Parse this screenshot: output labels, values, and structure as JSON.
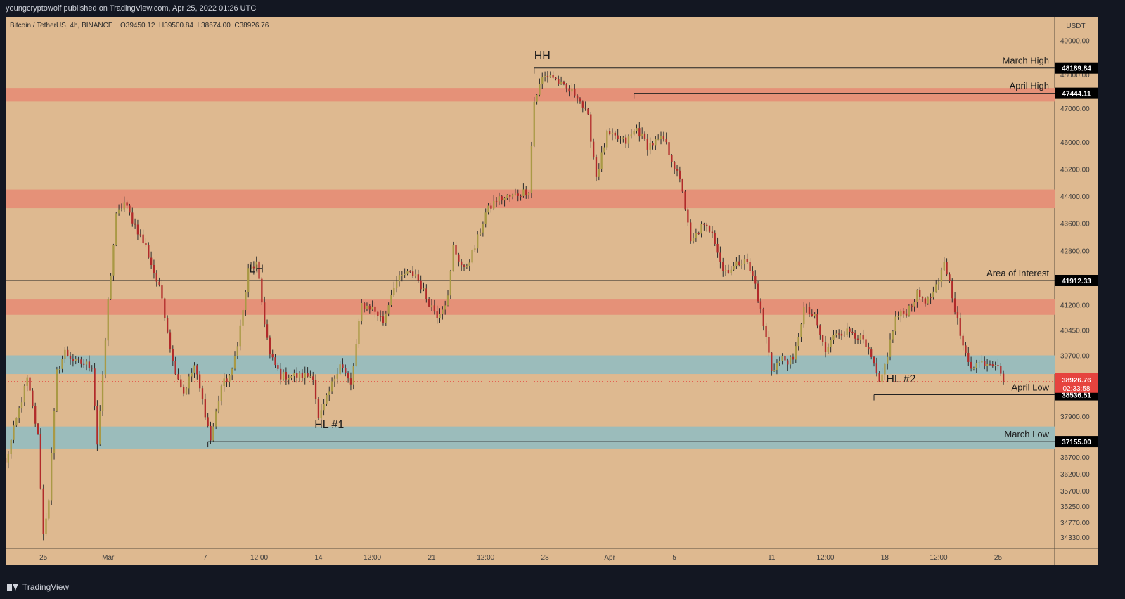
{
  "publisher_line": "youngcryptowolf published on TradingView.com, Apr 25, 2022 01:26 UTC",
  "footer": {
    "logo_text": "TradingView"
  },
  "legend": {
    "symbol": "Bitcoin / TetherUS, 4h, BINANCE",
    "ohlc": "O39450.12  H39500.84  L38674.00  C38926.76"
  },
  "price_axis_unit": "USDT",
  "colors": {
    "background": "#deb990",
    "chart_frame": "#131722",
    "up_candle": "#a99945",
    "down_candle": "#b12a2a",
    "wick": "#2b2b2b",
    "resistance_zone": "#e59178",
    "support_zone": "#9bbcbb",
    "axis_text": "#3c3c3c",
    "price_tag_bg": "#000000",
    "current_price_bg": "#e6433e"
  },
  "chart_data": {
    "type": "candlestick",
    "title": "Bitcoin / TetherUS, 4h, BINANCE",
    "timeframe": "4h",
    "ylim": [
      34000,
      49700
    ],
    "x_range_bars": [
      -4,
      385
    ],
    "y_ticks": [
      49000,
      48000,
      47000,
      46000,
      45200,
      44400,
      43600,
      42800,
      41200,
      40450,
      39700,
      39100,
      37900,
      37200,
      36700,
      36200,
      35700,
      35250,
      34770,
      34330
    ],
    "x_ticks": [
      {
        "label": "25",
        "bar": 10
      },
      {
        "label": "Mar",
        "bar": 34
      },
      {
        "label": "7",
        "bar": 70
      },
      {
        "label": "12:00",
        "bar": 90
      },
      {
        "label": "14",
        "bar": 112
      },
      {
        "label": "12:00",
        "bar": 132
      },
      {
        "label": "21",
        "bar": 154
      },
      {
        "label": "12:00",
        "bar": 174
      },
      {
        "label": "28",
        "bar": 196
      },
      {
        "label": "Apr",
        "bar": 220
      },
      {
        "label": "5",
        "bar": 244
      },
      {
        "label": "11",
        "bar": 280
      },
      {
        "label": "12:00",
        "bar": 300
      },
      {
        "label": "18",
        "bar": 322
      },
      {
        "label": "12:00",
        "bar": 342
      },
      {
        "label": "25",
        "bar": 364
      }
    ],
    "price_labels": [
      {
        "label": "48189.84",
        "price": 48189.84
      },
      {
        "label": "47444.11",
        "price": 47444.11
      },
      {
        "label": "41912.33",
        "price": 41912.33
      },
      {
        "label": "38536.51",
        "price": 38536.51
      },
      {
        "label": "37155.00",
        "price": 37155.0
      }
    ],
    "current_price": {
      "label": "38926.76",
      "countdown": "02:33:58",
      "price": 38926.76
    },
    "zones": [
      {
        "kind": "resistance",
        "from": 47200,
        "to": 47600
      },
      {
        "kind": "resistance",
        "from": 44050,
        "to": 44600
      },
      {
        "kind": "resistance",
        "from": 40900,
        "to": 41350
      },
      {
        "kind": "support",
        "from": 39150,
        "to": 39700
      },
      {
        "kind": "support",
        "from": 36950,
        "to": 37600
      }
    ],
    "levels": [
      {
        "label": "March High",
        "price": 48189.84,
        "from_bar": 192
      },
      {
        "label": "April High",
        "price": 47444.11,
        "from_bar": 229
      },
      {
        "label": "Area of Interest",
        "price": 41912.33,
        "from_bar": -4
      },
      {
        "label": "April Low",
        "price": 38536.51,
        "from_bar": 318
      },
      {
        "label": "March Low",
        "price": 37155.0,
        "from_bar": 71
      }
    ],
    "annotations": [
      {
        "text": "HH",
        "bar": 195,
        "price": 48450
      },
      {
        "text": "LH",
        "bar": 89,
        "price": 42150
      },
      {
        "text": "HL #1",
        "bar": 116,
        "price": 37550
      },
      {
        "text": "HL #2",
        "bar": 328,
        "price": 38900
      }
    ],
    "anchors": [
      [
        -4,
        36500
      ],
      [
        -1,
        37500
      ],
      [
        4,
        39000
      ],
      [
        8,
        37300
      ],
      [
        10,
        34400
      ],
      [
        12,
        35500
      ],
      [
        15,
        39200
      ],
      [
        18,
        39800
      ],
      [
        22,
        39500
      ],
      [
        28,
        39400
      ],
      [
        30,
        37100
      ],
      [
        32,
        39000
      ],
      [
        34,
        41300
      ],
      [
        37,
        43800
      ],
      [
        40,
        44200
      ],
      [
        43,
        43700
      ],
      [
        48,
        42900
      ],
      [
        54,
        41400
      ],
      [
        58,
        39500
      ],
      [
        62,
        38600
      ],
      [
        66,
        39400
      ],
      [
        70,
        38000
      ],
      [
        72,
        37200
      ],
      [
        76,
        38800
      ],
      [
        80,
        39200
      ],
      [
        84,
        41000
      ],
      [
        86,
        42200
      ],
      [
        89,
        42400
      ],
      [
        92,
        40700
      ],
      [
        94,
        39700
      ],
      [
        98,
        39100
      ],
      [
        104,
        39100
      ],
      [
        110,
        39100
      ],
      [
        112,
        37800
      ],
      [
        115,
        38400
      ],
      [
        120,
        39500
      ],
      [
        124,
        38800
      ],
      [
        128,
        41200
      ],
      [
        132,
        41100
      ],
      [
        136,
        40700
      ],
      [
        140,
        41800
      ],
      [
        144,
        42100
      ],
      [
        148,
        42100
      ],
      [
        152,
        41400
      ],
      [
        156,
        40900
      ],
      [
        160,
        41400
      ],
      [
        162,
        42900
      ],
      [
        166,
        42200
      ],
      [
        170,
        42900
      ],
      [
        174,
        43900
      ],
      [
        178,
        44300
      ],
      [
        184,
        44400
      ],
      [
        190,
        44600
      ],
      [
        192,
        47200
      ],
      [
        195,
        47900
      ],
      [
        198,
        48000
      ],
      [
        203,
        47600
      ],
      [
        208,
        47400
      ],
      [
        212,
        46700
      ],
      [
        215,
        45000
      ],
      [
        219,
        46200
      ],
      [
        223,
        46100
      ],
      [
        226,
        46000
      ],
      [
        230,
        46400
      ],
      [
        234,
        45900
      ],
      [
        240,
        46100
      ],
      [
        243,
        45500
      ],
      [
        247,
        44600
      ],
      [
        250,
        43000
      ],
      [
        254,
        43500
      ],
      [
        258,
        43400
      ],
      [
        262,
        42200
      ],
      [
        266,
        42300
      ],
      [
        270,
        42600
      ],
      [
        274,
        41800
      ],
      [
        278,
        40200
      ],
      [
        280,
        39300
      ],
      [
        284,
        39600
      ],
      [
        288,
        39500
      ],
      [
        292,
        41100
      ],
      [
        296,
        40800
      ],
      [
        300,
        39800
      ],
      [
        304,
        40400
      ],
      [
        310,
        40400
      ],
      [
        314,
        40100
      ],
      [
        318,
        39400
      ],
      [
        320,
        38800
      ],
      [
        322,
        39400
      ],
      [
        326,
        40800
      ],
      [
        330,
        41000
      ],
      [
        334,
        41500
      ],
      [
        338,
        41300
      ],
      [
        342,
        41800
      ],
      [
        344,
        42500
      ],
      [
        347,
        41500
      ],
      [
        351,
        39900
      ],
      [
        354,
        39400
      ],
      [
        358,
        39500
      ],
      [
        364,
        39500
      ],
      [
        366,
        38930
      ]
    ]
  }
}
